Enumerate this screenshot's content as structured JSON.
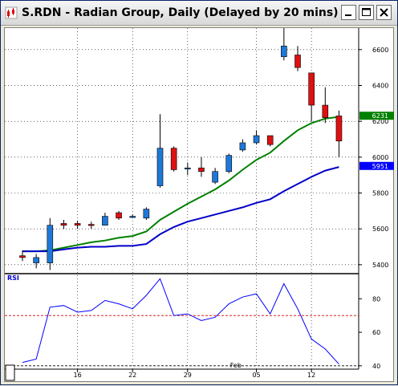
{
  "window": {
    "title": "S.RDN - Radian Group, Daily (Delayed by 20 mins)",
    "icons": [
      "app-chart-icon",
      "minimize-icon",
      "maximize-icon",
      "close-icon"
    ]
  },
  "colors": {
    "up_candle": "#1e78d8",
    "down_candle": "#dd1111",
    "sma_short": "#008000",
    "sma_long": "#0000c8",
    "rsi_line": "#0000ff",
    "rsi_ref_upper": "#cc0000",
    "rsi_ref_lower": "#000000",
    "badge_green": "#008000",
    "badge_blue": "#0000ff"
  },
  "chart_data": [
    {
      "type": "candlestick",
      "title": "S.RDN - Radian Group, Daily (Delayed by 20 mins)",
      "ylim": [
        5350,
        6720
      ],
      "y_ticks": [
        5400,
        5600,
        5800,
        6000,
        6200,
        6400,
        6600
      ],
      "y_tick_labels": [
        "5400",
        "5600",
        "5800",
        "6000",
        "6200",
        "6400",
        "6600"
      ],
      "x_tick_labels": [
        "16",
        "22",
        "29",
        "Feb",
        "05",
        "12"
      ],
      "x_tick_positions": [
        4,
        8,
        12,
        15.5,
        17,
        21
      ],
      "grid": true,
      "candles": [
        {
          "o": 5450,
          "h": 5480,
          "l": 5420,
          "c": 5440
        },
        {
          "o": 5410,
          "h": 5460,
          "l": 5380,
          "c": 5440
        },
        {
          "o": 5410,
          "h": 5660,
          "l": 5370,
          "c": 5620
        },
        {
          "o": 5630,
          "h": 5650,
          "l": 5600,
          "c": 5620
        },
        {
          "o": 5630,
          "h": 5645,
          "l": 5600,
          "c": 5620
        },
        {
          "o": 5625,
          "h": 5640,
          "l": 5600,
          "c": 5620
        },
        {
          "o": 5620,
          "h": 5690,
          "l": 5620,
          "c": 5670
        },
        {
          "o": 5690,
          "h": 5700,
          "l": 5650,
          "c": 5660
        },
        {
          "o": 5670,
          "h": 5680,
          "l": 5660,
          "c": 5670
        },
        {
          "o": 5660,
          "h": 5720,
          "l": 5650,
          "c": 5710
        },
        {
          "o": 5840,
          "h": 6240,
          "l": 5830,
          "c": 6050
        },
        {
          "o": 6050,
          "h": 6060,
          "l": 5920,
          "c": 5930
        },
        {
          "o": 5940,
          "h": 5970,
          "l": 5900,
          "c": 5940
        },
        {
          "o": 5940,
          "h": 6000,
          "l": 5890,
          "c": 5920
        },
        {
          "o": 5860,
          "h": 5940,
          "l": 5850,
          "c": 5920
        },
        {
          "o": 5920,
          "h": 6020,
          "l": 5910,
          "c": 6010
        },
        {
          "o": 6040,
          "h": 6100,
          "l": 6030,
          "c": 6080
        },
        {
          "o": 6080,
          "h": 6150,
          "l": 6070,
          "c": 6120
        },
        {
          "o": 6120,
          "h": 6120,
          "l": 6060,
          "c": 6070
        },
        {
          "o": 6560,
          "h": 6730,
          "l": 6540,
          "c": 6620
        },
        {
          "o": 6570,
          "h": 6620,
          "l": 6480,
          "c": 6500
        },
        {
          "o": 6470,
          "h": 6470,
          "l": 6200,
          "c": 6290
        },
        {
          "o": 6290,
          "h": 6390,
          "l": 6190,
          "c": 6220
        },
        {
          "o": 6230,
          "h": 6260,
          "l": 6000,
          "c": 6090
        }
      ],
      "series": [
        {
          "values": [
            5475,
            5475,
            5480,
            5495,
            5510,
            5525,
            5535,
            5550,
            5560,
            5585,
            5650,
            5695,
            5740,
            5780,
            5820,
            5870,
            5930,
            5985,
            6025,
            6090,
            6150,
            6190,
            6215,
            6225
          ]
        },
        {
          "values": [
            5475,
            5475,
            5475,
            5485,
            5495,
            5500,
            5500,
            5505,
            5505,
            5515,
            5570,
            5610,
            5640,
            5660,
            5680,
            5700,
            5720,
            5745,
            5765,
            5810,
            5850,
            5890,
            5925,
            5945
          ]
        }
      ],
      "last_value_badges": [
        {
          "label": "6231",
          "value": 6231,
          "color": "green"
        },
        {
          "label": "5951",
          "value": 5951,
          "color": "blue"
        }
      ]
    },
    {
      "type": "line",
      "title": "RSI",
      "ylim": [
        38,
        95
      ],
      "y_ticks": [
        40,
        60,
        80
      ],
      "y_tick_labels": [
        "40",
        "60",
        "80"
      ],
      "reference_lines": [
        70,
        40
      ],
      "series": [
        {
          "name": "RSI",
          "values": [
            42,
            44,
            75,
            76,
            72,
            73,
            79,
            77,
            74,
            82,
            92,
            70,
            71,
            67,
            69,
            77,
            81,
            83,
            71,
            89,
            74,
            56,
            50,
            41
          ]
        }
      ]
    }
  ]
}
